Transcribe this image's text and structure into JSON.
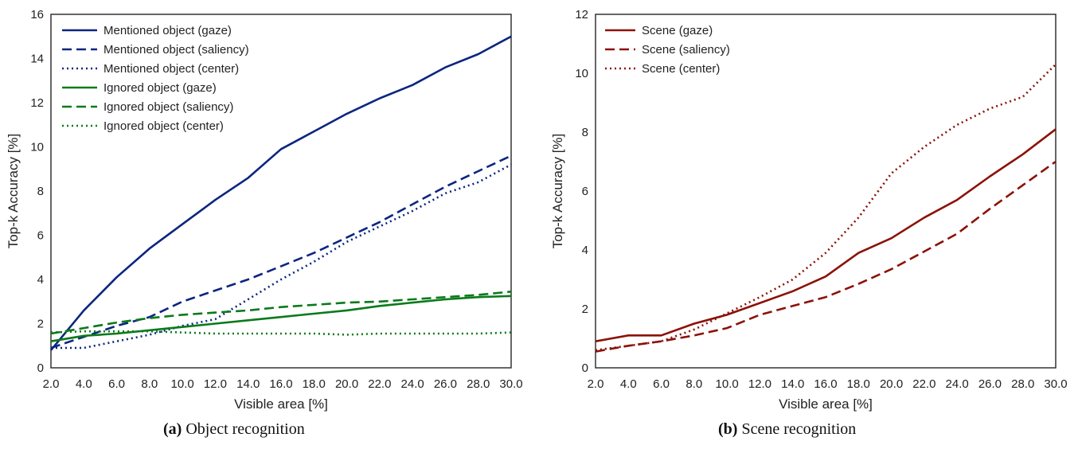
{
  "captions": {
    "a_tag": "(a)",
    "a_text": " Object recognition",
    "b_tag": "(b)",
    "b_text": " Scene recognition"
  },
  "chart_data": [
    {
      "type": "line",
      "xlabel": "Visible area [%]",
      "ylabel": "Top-k Accuracy [%]",
      "x": [
        2,
        4,
        6,
        8,
        10,
        12,
        14,
        16,
        18,
        20,
        22,
        24,
        26,
        28,
        30
      ],
      "xticks": [
        "2.0",
        "4.0",
        "6.0",
        "8.0",
        "10.0",
        "12.0",
        "14.0",
        "16.0",
        "18.0",
        "20.0",
        "22.0",
        "24.0",
        "26.0",
        "28.0",
        "30.0"
      ],
      "xlim": [
        2,
        30
      ],
      "ylim": [
        0,
        16
      ],
      "yticks": [
        "0",
        "2",
        "4",
        "6",
        "8",
        "10",
        "12",
        "14",
        "16"
      ],
      "grid": false,
      "legend_position": "top-left",
      "series": [
        {
          "name": "Mentioned object (gaze)",
          "color": "#0c2580",
          "style": "solid",
          "values": [
            0.8,
            2.6,
            4.1,
            5.4,
            6.5,
            7.6,
            8.6,
            9.9,
            10.7,
            11.5,
            12.2,
            12.8,
            13.6,
            14.2,
            15.0
          ]
        },
        {
          "name": "Mentioned object (saliency)",
          "color": "#0c2580",
          "style": "dashed",
          "values": [
            0.9,
            1.4,
            1.9,
            2.3,
            3.0,
            3.5,
            4.0,
            4.6,
            5.2,
            5.9,
            6.6,
            7.4,
            8.2,
            8.9,
            9.6
          ]
        },
        {
          "name": "Mentioned object (center)",
          "color": "#0c2580",
          "style": "dotted",
          "values": [
            0.9,
            0.9,
            1.2,
            1.5,
            1.9,
            2.2,
            3.1,
            4.0,
            4.8,
            5.7,
            6.4,
            7.1,
            7.9,
            8.4,
            9.2
          ]
        },
        {
          "name": "Ignored object (gaze)",
          "color": "#0a7a1a",
          "style": "solid",
          "values": [
            1.2,
            1.45,
            1.55,
            1.7,
            1.85,
            2.0,
            2.15,
            2.3,
            2.45,
            2.6,
            2.8,
            2.95,
            3.1,
            3.2,
            3.25
          ]
        },
        {
          "name": "Ignored object (saliency)",
          "color": "#0a7a1a",
          "style": "dashed",
          "values": [
            1.55,
            1.8,
            2.05,
            2.25,
            2.4,
            2.5,
            2.6,
            2.75,
            2.85,
            2.95,
            3.0,
            3.1,
            3.2,
            3.3,
            3.45
          ]
        },
        {
          "name": "Ignored object (center)",
          "color": "#0a7a1a",
          "style": "dotted",
          "values": [
            1.6,
            1.65,
            1.65,
            1.65,
            1.6,
            1.55,
            1.55,
            1.55,
            1.55,
            1.5,
            1.55,
            1.55,
            1.55,
            1.55,
            1.6
          ]
        }
      ]
    },
    {
      "type": "line",
      "xlabel": "Visible area [%]",
      "ylabel": "Top-k Accuracy [%]",
      "x": [
        2,
        4,
        6,
        8,
        10,
        12,
        14,
        16,
        18,
        20,
        22,
        24,
        26,
        28,
        30
      ],
      "xticks": [
        "2.0",
        "4.0",
        "6.0",
        "8.0",
        "10.0",
        "12.0",
        "14.0",
        "16.0",
        "18.0",
        "20.0",
        "22.0",
        "24.0",
        "26.0",
        "28.0",
        "30.0"
      ],
      "xlim": [
        2,
        30
      ],
      "ylim": [
        0,
        12
      ],
      "yticks": [
        "0",
        "2",
        "4",
        "6",
        "8",
        "10",
        "12"
      ],
      "grid": false,
      "legend_position": "top-left",
      "series": [
        {
          "name": "Scene (gaze)",
          "color": "#8b1208",
          "style": "solid",
          "values": [
            0.9,
            1.1,
            1.1,
            1.5,
            1.8,
            2.2,
            2.6,
            3.1,
            3.9,
            4.4,
            5.1,
            5.7,
            6.5,
            7.25,
            8.1
          ]
        },
        {
          "name": "Scene (saliency)",
          "color": "#8b1208",
          "style": "dashed",
          "values": [
            0.55,
            0.75,
            0.9,
            1.1,
            1.35,
            1.8,
            2.1,
            2.4,
            2.85,
            3.35,
            3.95,
            4.55,
            5.4,
            6.2,
            7.0
          ]
        },
        {
          "name": "Scene (center)",
          "color": "#8b1208",
          "style": "dotted",
          "values": [
            0.6,
            0.75,
            0.9,
            1.3,
            1.85,
            2.4,
            3.0,
            3.9,
            5.1,
            6.6,
            7.5,
            8.25,
            8.8,
            9.2,
            10.3
          ]
        }
      ]
    }
  ]
}
